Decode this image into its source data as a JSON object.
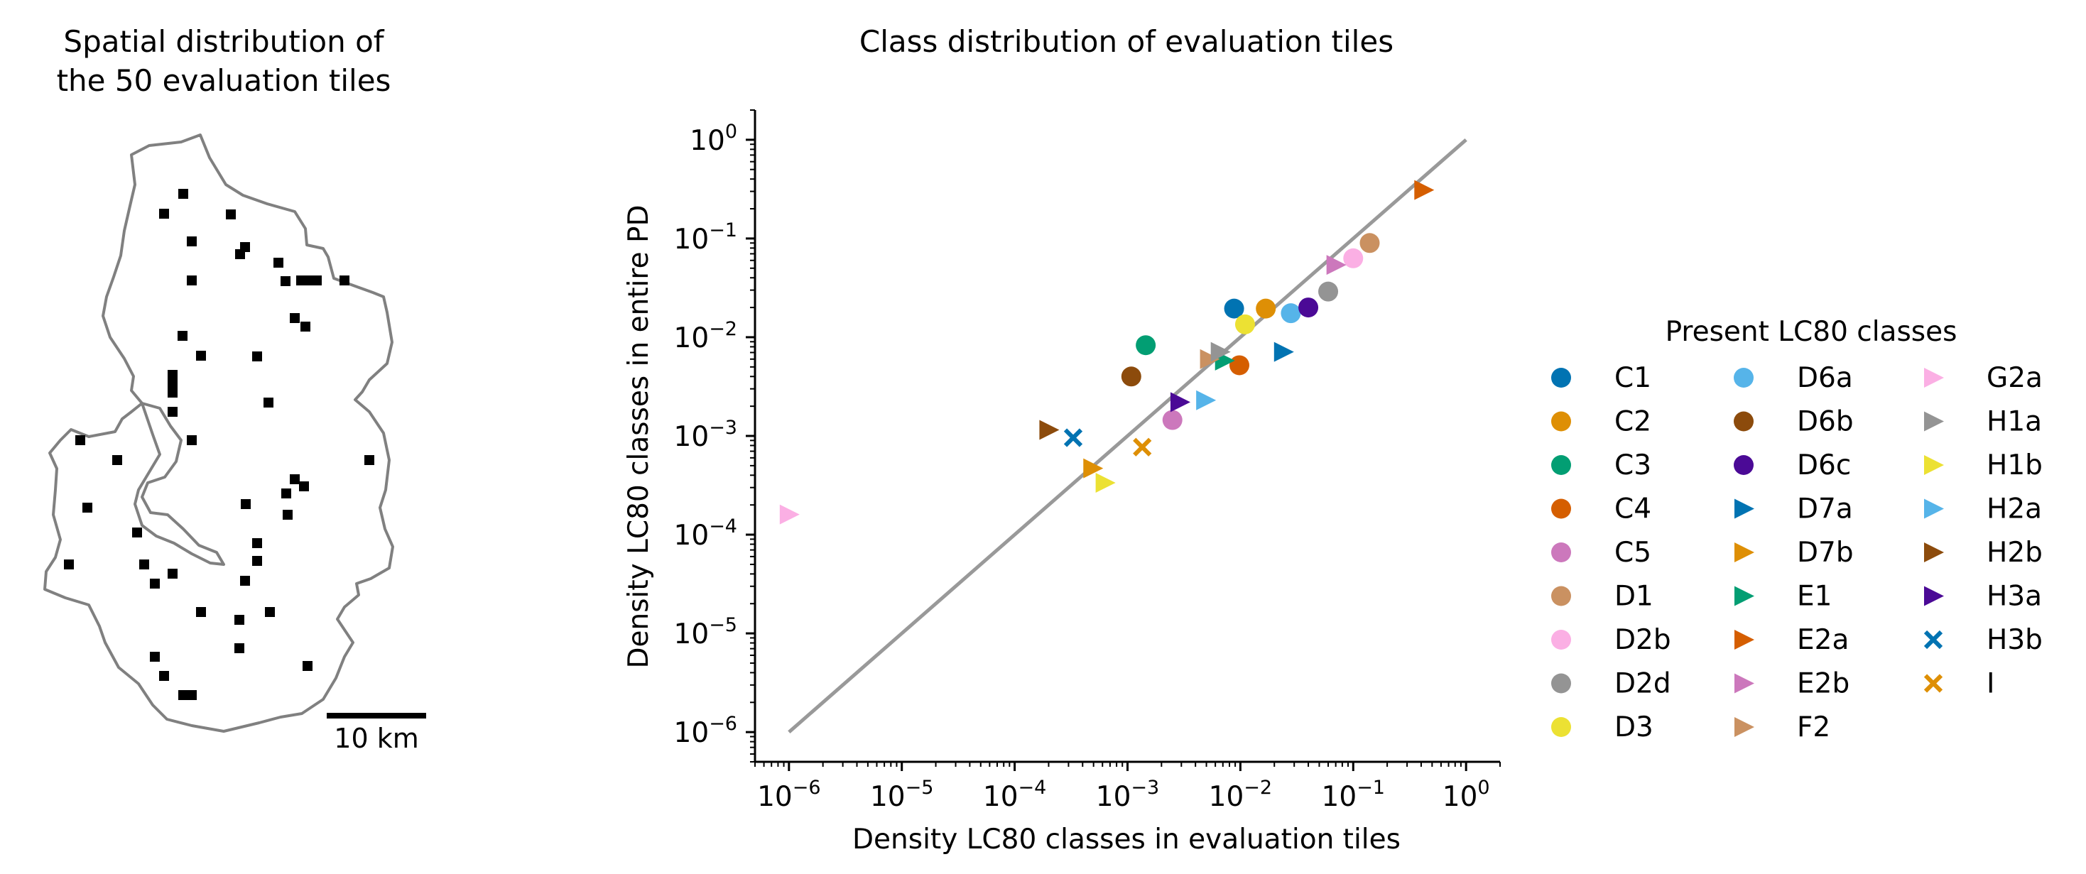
{
  "map_panel": {
    "title_lines": [
      "Spatial distribution of",
      "the 50 evaluation tiles"
    ],
    "scale_bar_label": "10 km",
    "tile_count": 50
  },
  "chart_data": {
    "type": "scatter",
    "title": "Class distribution of evaluation tiles",
    "xlabel": "Density LC80 classes in evaluation tiles",
    "ylabel": "Density LC80 classes in entire PD",
    "xscale": "log",
    "yscale": "log",
    "xlim": [
      5e-07,
      2
    ],
    "ylim": [
      5e-07,
      2
    ],
    "x_ticks": [
      {
        "base": "10",
        "exp": "−6"
      },
      {
        "base": "10",
        "exp": "−5"
      },
      {
        "base": "10",
        "exp": "−4"
      },
      {
        "base": "10",
        "exp": "−3"
      },
      {
        "base": "10",
        "exp": "−2"
      },
      {
        "base": "10",
        "exp": "−1"
      },
      {
        "base": "10",
        "exp": "0"
      }
    ],
    "y_ticks": [
      {
        "base": "10",
        "exp": "−6"
      },
      {
        "base": "10",
        "exp": "−5"
      },
      {
        "base": "10",
        "exp": "−4"
      },
      {
        "base": "10",
        "exp": "−3"
      },
      {
        "base": "10",
        "exp": "−2"
      },
      {
        "base": "10",
        "exp": "−1"
      },
      {
        "base": "10",
        "exp": "0"
      }
    ],
    "identity_line": {
      "from": [
        1e-06,
        1e-06
      ],
      "to": [
        1,
        1
      ],
      "color": "#999999"
    },
    "legend_title": "Present LC80 classes",
    "legend_position": "right",
    "series": [
      {
        "name": "C1",
        "marker": "circle",
        "color": "#0173b2",
        "x": 0.0088,
        "y": 0.0195
      },
      {
        "name": "C2",
        "marker": "circle",
        "color": "#de8f05",
        "x": 0.0168,
        "y": 0.0195
      },
      {
        "name": "C3",
        "marker": "circle",
        "color": "#029e73",
        "x": 0.00145,
        "y": 0.0083
      },
      {
        "name": "C4",
        "marker": "circle",
        "color": "#d55e00",
        "x": 0.0098,
        "y": 0.0052
      },
      {
        "name": "C5",
        "marker": "circle",
        "color": "#cc78bc",
        "x": 0.0025,
        "y": 0.00145
      },
      {
        "name": "D1",
        "marker": "circle",
        "color": "#ca9161",
        "x": 0.14,
        "y": 0.09
      },
      {
        "name": "D2b",
        "marker": "circle",
        "color": "#fbafe4",
        "x": 0.1,
        "y": 0.063
      },
      {
        "name": "D2d",
        "marker": "circle",
        "color": "#949494",
        "x": 0.06,
        "y": 0.029
      },
      {
        "name": "D3",
        "marker": "circle",
        "color": "#ece133",
        "x": 0.011,
        "y": 0.0135
      },
      {
        "name": "D6a",
        "marker": "circle",
        "color": "#56b4e9",
        "x": 0.028,
        "y": 0.0175
      },
      {
        "name": "D6b",
        "marker": "circle",
        "color": "#8c4b0c",
        "x": 0.00108,
        "y": 0.004
      },
      {
        "name": "D6c",
        "marker": "circle",
        "color": "#4b0a96",
        "x": 0.04,
        "y": 0.02
      },
      {
        "name": "D7a",
        "marker": "triangle",
        "color": "#0173b2",
        "x": 0.024,
        "y": 0.0071
      },
      {
        "name": "D7b",
        "marker": "triangle",
        "color": "#de8f05",
        "x": 0.00049,
        "y": 0.00047
      },
      {
        "name": "E1",
        "marker": "triangle",
        "color": "#029e73",
        "x": 0.0072,
        "y": 0.0058
      },
      {
        "name": "E2a",
        "marker": "triangle",
        "color": "#d55e00",
        "x": 0.42,
        "y": 0.31
      },
      {
        "name": "E2b",
        "marker": "triangle",
        "color": "#cc78bc",
        "x": 0.07,
        "y": 0.054
      },
      {
        "name": "F2",
        "marker": "triangle",
        "color": "#ca9161",
        "x": 0.0053,
        "y": 0.006
      },
      {
        "name": "G2a",
        "marker": "triangle",
        "color": "#fbafe4",
        "x": 1e-06,
        "y": 0.00016
      },
      {
        "name": "H1a",
        "marker": "triangle",
        "color": "#949494",
        "x": 0.0066,
        "y": 0.0071
      },
      {
        "name": "H1b",
        "marker": "triangle",
        "color": "#ece133",
        "x": 0.00063,
        "y": 0.000335
      },
      {
        "name": "H2a",
        "marker": "triangle",
        "color": "#56b4e9",
        "x": 0.0049,
        "y": 0.0023
      },
      {
        "name": "H2b",
        "marker": "triangle",
        "color": "#8c4b0c",
        "x": 0.0002,
        "y": 0.00115
      },
      {
        "name": "H3a",
        "marker": "triangle",
        "color": "#4b0a96",
        "x": 0.0029,
        "y": 0.0022
      },
      {
        "name": "H3b",
        "marker": "x",
        "color": "#0173b2",
        "x": 0.00033,
        "y": 0.00096
      },
      {
        "name": "I",
        "marker": "x",
        "color": "#de8f05",
        "x": 0.00135,
        "y": 0.00077
      }
    ]
  }
}
